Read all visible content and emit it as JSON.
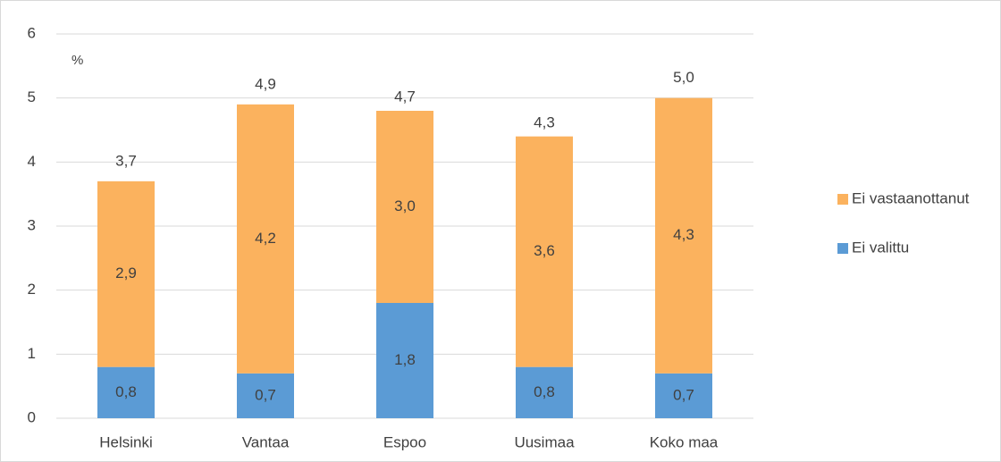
{
  "chart_data": {
    "type": "stacked_bar",
    "y_label": "%",
    "categories": [
      "Helsinki",
      "Vantaa",
      "Espoo",
      "Uusimaa",
      "Koko maa"
    ],
    "series": [
      {
        "name": "Ei valittu",
        "color": "#5b9bd5",
        "values": [
          0.8,
          0.7,
          1.8,
          0.8,
          0.7
        ],
        "value_labels": [
          "0,8",
          "0,7",
          "1,8",
          "0,8",
          "0,7"
        ]
      },
      {
        "name": "Ei vastaanottanut",
        "color": "#fbb25e",
        "values": [
          2.9,
          4.2,
          3.0,
          3.6,
          4.3
        ],
        "value_labels": [
          "2,9",
          "4,2",
          "3,0",
          "3,6",
          "4,3"
        ]
      }
    ],
    "totals": [
      3.7,
      4.9,
      4.7,
      4.3,
      5.0
    ],
    "total_labels": [
      "3,7",
      "4,9",
      "4,7",
      "4,3",
      "5,0"
    ],
    "ylim": [
      0,
      6
    ],
    "yticks": [
      0,
      1,
      2,
      3,
      4,
      5,
      6
    ],
    "grid": true,
    "legend": "right"
  }
}
